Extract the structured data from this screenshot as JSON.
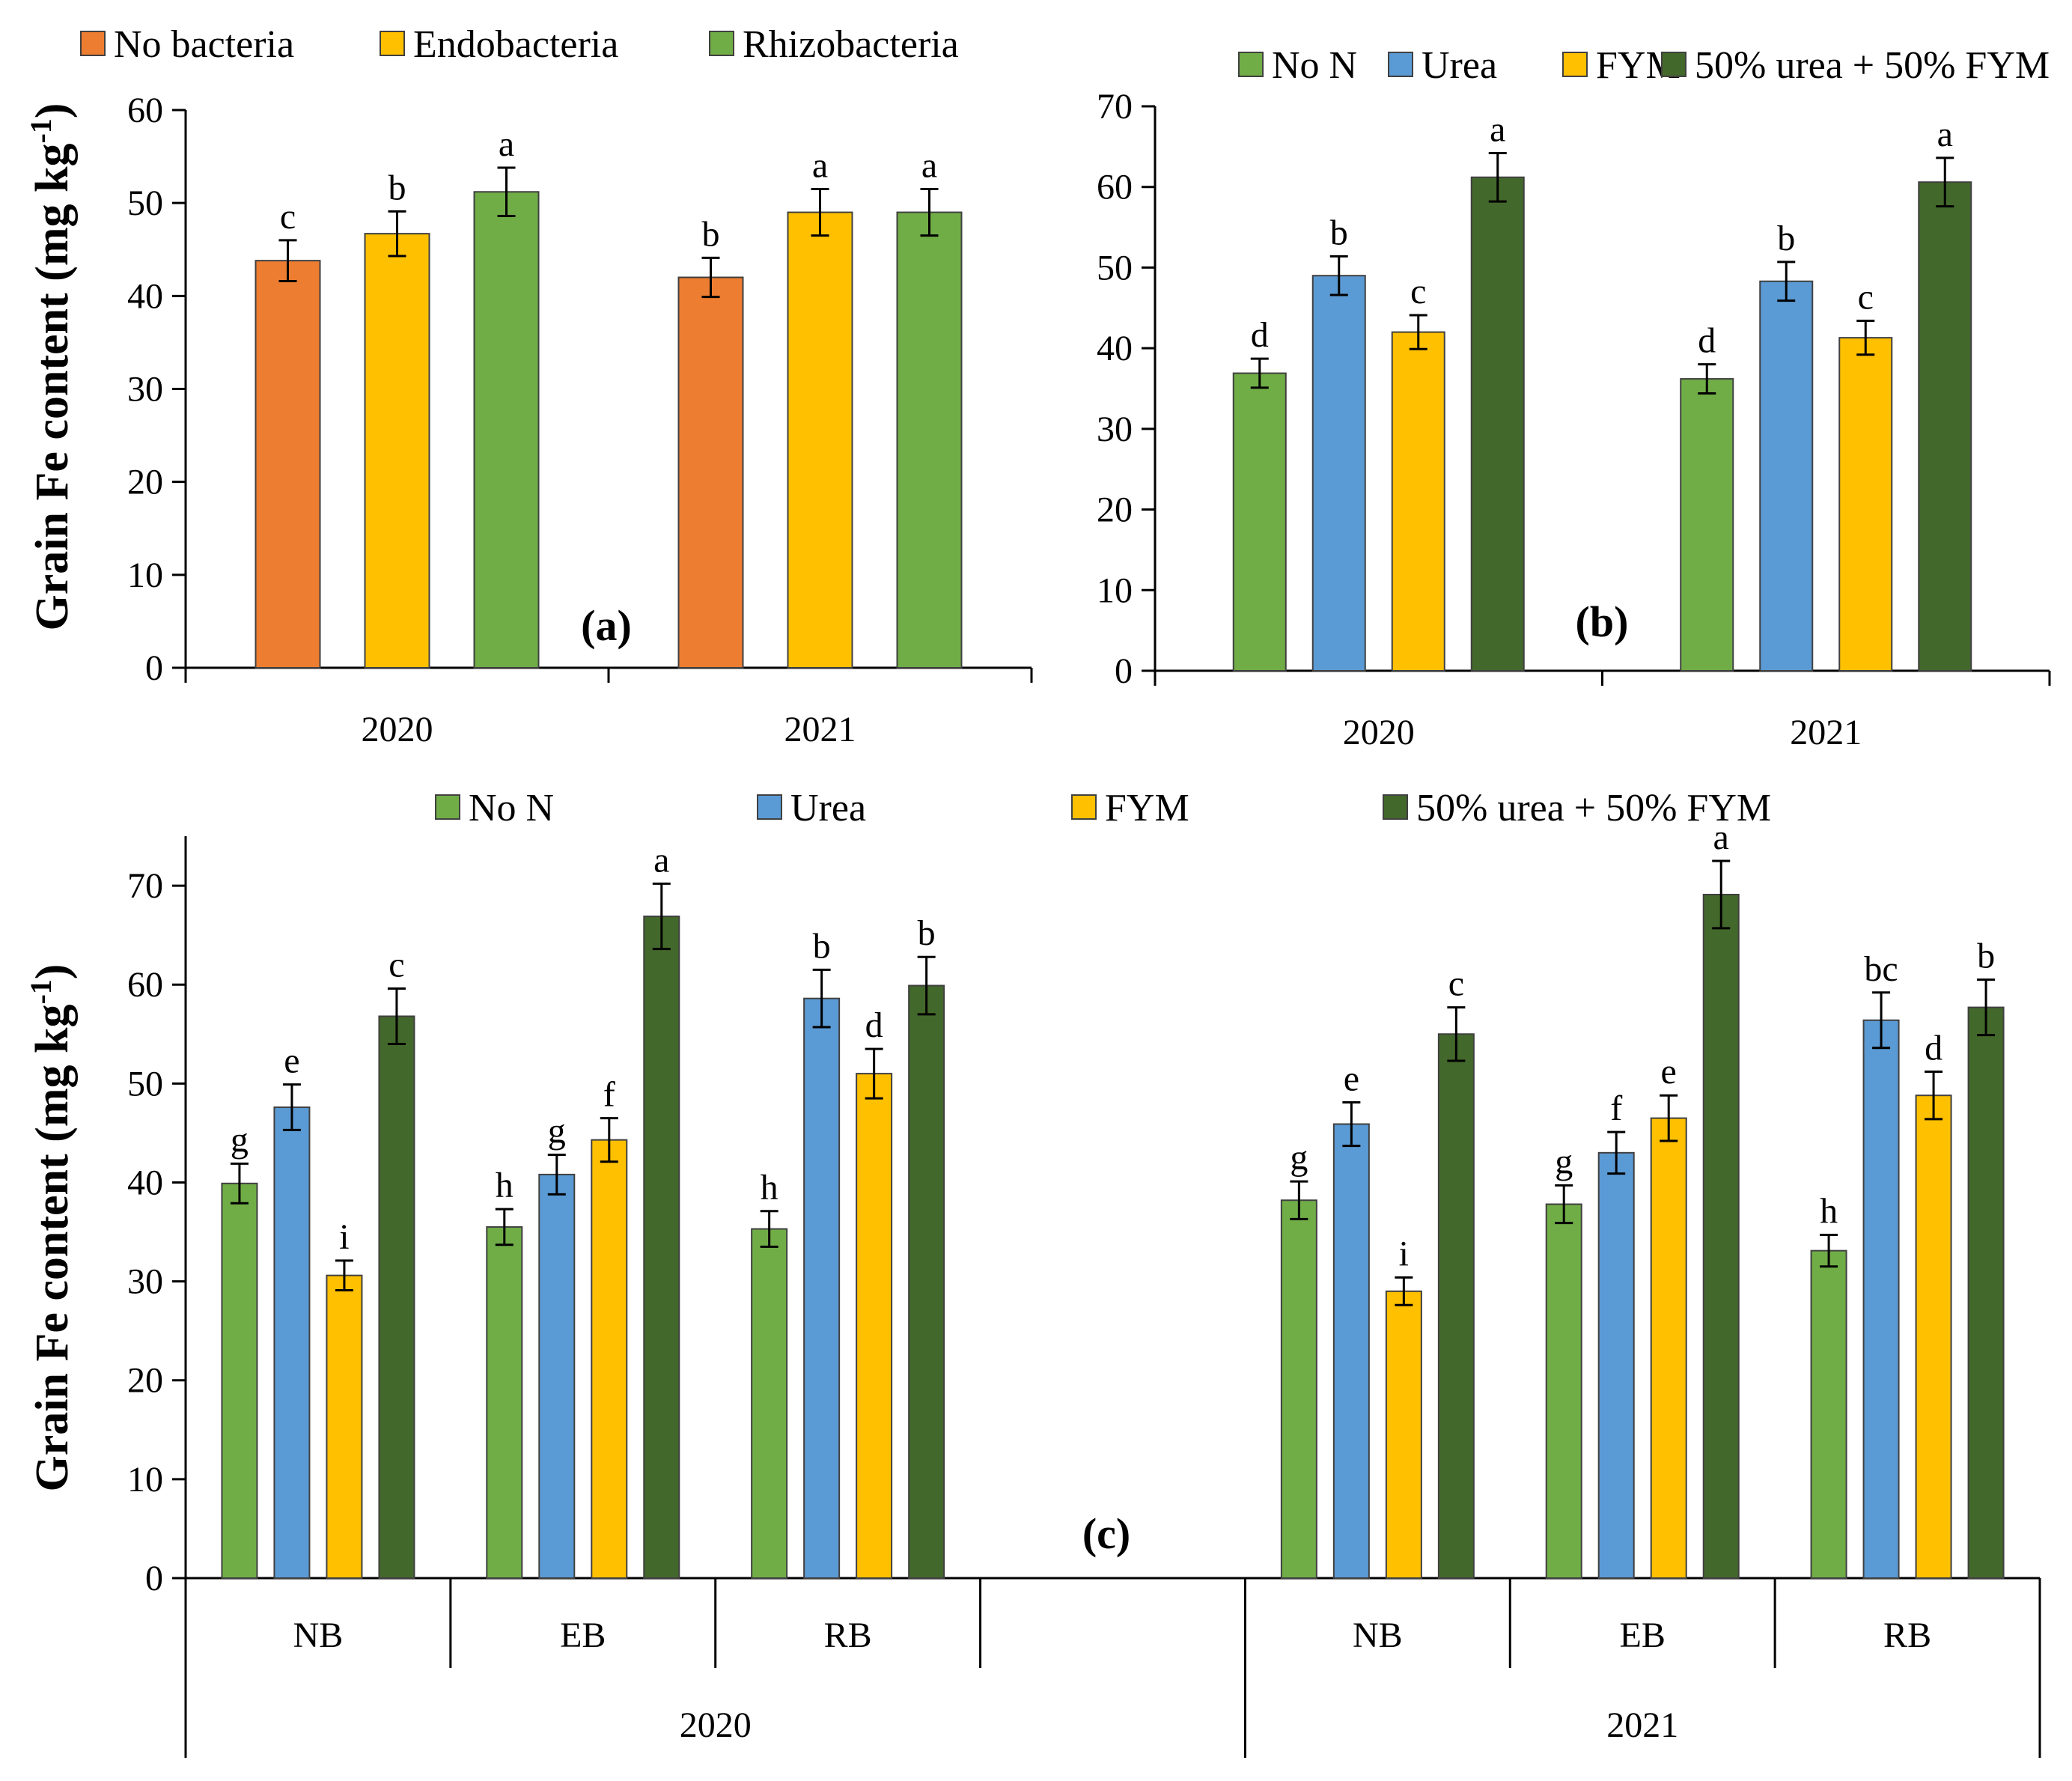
{
  "chart_data": [
    {
      "id": "a",
      "type": "bar",
      "panel_label": "(a)",
      "ylabel_main": "Grain Fe content (mg kg",
      "ylabel_sup": "-1",
      "ylabel_close": ")",
      "categories": [
        "2020",
        "2021"
      ],
      "ylim": [
        0,
        60
      ],
      "yticks": [
        "0",
        "10",
        "20",
        "30",
        "40",
        "50",
        "60"
      ],
      "legend_position": "top",
      "series": [
        {
          "name": "No bacteria",
          "color": "#ED7D31",
          "values": [
            43.8,
            42.0
          ],
          "errors": [
            2.2,
            2.1
          ],
          "letters": [
            "c",
            "b"
          ]
        },
        {
          "name": "Endobacteria",
          "color": "#FFC000",
          "values": [
            46.7,
            49.0
          ],
          "errors": [
            2.4,
            2.5
          ],
          "letters": [
            "b",
            "a"
          ]
        },
        {
          "name": "Rhizobacteria",
          "color": "#70AD47",
          "values": [
            51.2,
            49.0
          ],
          "errors": [
            2.6,
            2.5
          ],
          "letters": [
            "a",
            "a"
          ]
        }
      ]
    },
    {
      "id": "b",
      "type": "bar",
      "panel_label": "(b)",
      "categories": [
        "2020",
        "2021"
      ],
      "ylim": [
        0,
        70
      ],
      "yticks": [
        "0",
        "10",
        "20",
        "30",
        "40",
        "50",
        "60",
        "70"
      ],
      "legend_position": "top",
      "series": [
        {
          "name": "No N",
          "color": "#70AD47",
          "values": [
            36.9,
            36.2
          ],
          "errors": [
            1.8,
            1.8
          ],
          "letters": [
            "d",
            "d"
          ]
        },
        {
          "name": "Urea",
          "color": "#5B9BD5",
          "values": [
            49.0,
            48.3
          ],
          "errors": [
            2.4,
            2.4
          ],
          "letters": [
            "b",
            "b"
          ]
        },
        {
          "name": "FYM",
          "color": "#FFC000",
          "values": [
            42.0,
            41.3
          ],
          "errors": [
            2.1,
            2.1
          ],
          "letters": [
            "c",
            "c"
          ]
        },
        {
          "name": "50% urea + 50% FYM",
          "color": "#43682B",
          "values": [
            61.2,
            60.6
          ],
          "errors": [
            3.0,
            3.0
          ],
          "letters": [
            "a",
            "a"
          ]
        }
      ]
    },
    {
      "id": "c",
      "type": "bar",
      "panel_label": "(c)",
      "ylabel_main": "Grain Fe content (mg kg",
      "ylabel_sup": "-1",
      "ylabel_close": ")",
      "groups": [
        "NB",
        "EB",
        "RB",
        "",
        "NB",
        "EB",
        "RB"
      ],
      "years": [
        "2020",
        "2021"
      ],
      "ylim": [
        0,
        75
      ],
      "yticks": [
        "0",
        "10",
        "20",
        "30",
        "40",
        "50",
        "60",
        "70"
      ],
      "legend_position": "top",
      "series": [
        {
          "name": "No N",
          "color": "#70AD47",
          "values": [
            39.9,
            35.5,
            35.3,
            null,
            38.2,
            37.8,
            33.1
          ],
          "errors": [
            2.0,
            1.8,
            1.8,
            null,
            1.9,
            1.9,
            1.6
          ],
          "letters": [
            "g",
            "h",
            "h",
            "",
            "g",
            "g",
            "h"
          ]
        },
        {
          "name": "Urea",
          "color": "#5B9BD5",
          "values": [
            47.6,
            40.8,
            58.6,
            null,
            45.9,
            43.0,
            56.4
          ],
          "errors": [
            2.3,
            2.0,
            2.9,
            null,
            2.2,
            2.1,
            2.8
          ],
          "letters": [
            "e",
            "g",
            "b",
            "",
            "e",
            "f",
            "bc"
          ]
        },
        {
          "name": "FYM",
          "color": "#FFC000",
          "values": [
            30.6,
            44.3,
            51.0,
            null,
            29.0,
            46.5,
            48.8
          ],
          "errors": [
            1.5,
            2.2,
            2.5,
            null,
            1.4,
            2.3,
            2.4
          ],
          "letters": [
            "i",
            "f",
            "d",
            "",
            "i",
            "e",
            "d"
          ]
        },
        {
          "name": "50% urea + 50% FYM",
          "color": "#43682B",
          "values": [
            56.8,
            66.9,
            59.9,
            null,
            55.0,
            69.1,
            57.7
          ],
          "errors": [
            2.8,
            3.3,
            2.9,
            null,
            2.7,
            3.4,
            2.8
          ],
          "letters": [
            "c",
            "a",
            "b",
            "",
            "c",
            "a",
            "b"
          ]
        }
      ]
    }
  ]
}
